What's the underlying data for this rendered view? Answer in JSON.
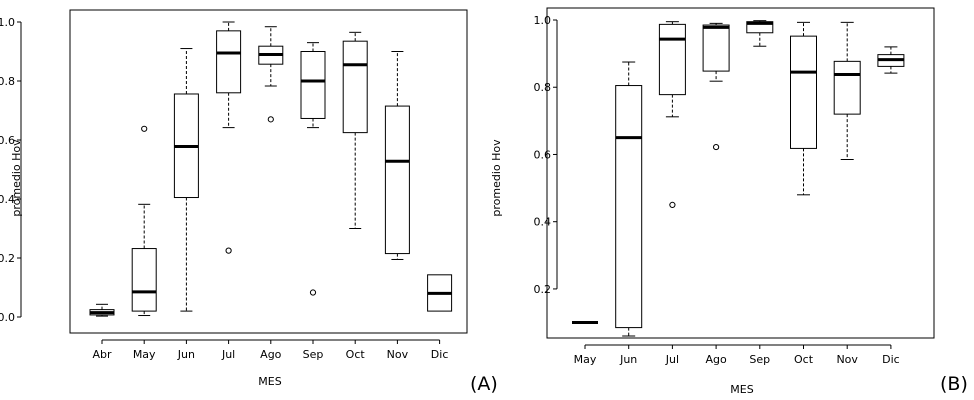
{
  "chart_data": [
    {
      "type": "boxplot",
      "panel_label": "(A)",
      "xlabel": "MES",
      "ylabel": "promedio Hov",
      "ylim": [
        0.0,
        1.0
      ],
      "yticks": [
        "0.0",
        "0.2",
        "0.4",
        "0.6",
        "0.8",
        "1.0"
      ],
      "categories": [
        "Abr",
        "May",
        "Jun",
        "Jul",
        "Ago",
        "Sep",
        "Oct",
        "Nov",
        "Dic"
      ],
      "boxes": [
        {
          "min": 0.003,
          "q1": 0.007,
          "median": 0.015,
          "q3": 0.025,
          "max": 0.043,
          "outliers": []
        },
        {
          "min": 0.005,
          "q1": 0.02,
          "median": 0.085,
          "q3": 0.232,
          "max": 0.382,
          "outliers": [
            0.638
          ]
        },
        {
          "min": 0.02,
          "q1": 0.405,
          "median": 0.578,
          "q3": 0.756,
          "max": 0.91,
          "outliers": []
        },
        {
          "min": 0.642,
          "q1": 0.76,
          "median": 0.895,
          "q3": 0.97,
          "max": 1.0,
          "outliers": [
            0.225
          ]
        },
        {
          "min": 0.783,
          "q1": 0.857,
          "median": 0.89,
          "q3": 0.918,
          "max": 0.984,
          "outliers": [
            0.67
          ]
        },
        {
          "min": 0.642,
          "q1": 0.673,
          "median": 0.8,
          "q3": 0.9,
          "max": 0.93,
          "outliers": [
            0.083
          ]
        },
        {
          "min": 0.3,
          "q1": 0.625,
          "median": 0.855,
          "q3": 0.935,
          "max": 0.965,
          "outliers": []
        },
        {
          "min": 0.195,
          "q1": 0.215,
          "median": 0.528,
          "q3": 0.715,
          "max": 0.9,
          "outliers": []
        },
        {
          "min": 0.02,
          "q1": 0.02,
          "median": 0.08,
          "q3": 0.143,
          "max": 0.143,
          "outliers": []
        }
      ]
    },
    {
      "type": "boxplot",
      "panel_label": "(B)",
      "xlabel": "MES",
      "ylabel": "promedio Hov",
      "ylim": [
        0.06,
        1.0
      ],
      "yticks": [
        "0.2",
        "0.4",
        "0.6",
        "0.8",
        "1.0"
      ],
      "categories": [
        "May",
        "Jun",
        "Jul",
        "Ago",
        "Sep",
        "Oct",
        "Nov",
        "Dic"
      ],
      "boxes": [
        {
          "min": 0.1,
          "q1": 0.1,
          "median": 0.1,
          "q3": 0.1,
          "max": 0.1,
          "outliers": []
        },
        {
          "min": 0.06,
          "q1": 0.085,
          "median": 0.65,
          "q3": 0.805,
          "max": 0.875,
          "outliers": []
        },
        {
          "min": 0.712,
          "q1": 0.778,
          "median": 0.943,
          "q3": 0.987,
          "max": 0.995,
          "outliers": [
            0.45
          ]
        },
        {
          "min": 0.818,
          "q1": 0.848,
          "median": 0.978,
          "q3": 0.985,
          "max": 0.99,
          "outliers": [
            0.622
          ]
        },
        {
          "min": 0.922,
          "q1": 0.962,
          "median": 0.99,
          "q3": 0.995,
          "max": 0.998,
          "outliers": []
        },
        {
          "min": 0.48,
          "q1": 0.618,
          "median": 0.845,
          "q3": 0.952,
          "max": 0.993,
          "outliers": []
        },
        {
          "min": 0.585,
          "q1": 0.72,
          "median": 0.838,
          "q3": 0.877,
          "max": 0.993,
          "outliers": []
        },
        {
          "min": 0.842,
          "q1": 0.862,
          "median": 0.882,
          "q3": 0.897,
          "max": 0.92,
          "outliers": []
        }
      ]
    }
  ]
}
